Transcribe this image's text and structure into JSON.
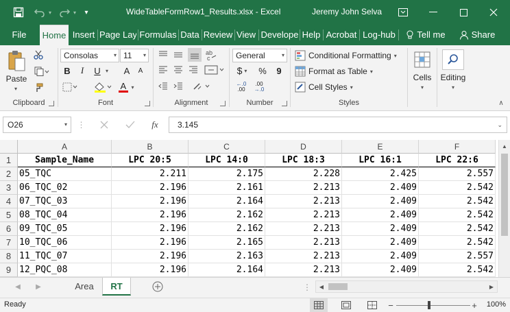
{
  "window": {
    "title": "WideTableFormRow1_Results.xlsx  -  Excel",
    "user": "Jeremy John Selva",
    "qat_more": "▾"
  },
  "tabs": [
    {
      "label": "File",
      "active": false
    },
    {
      "label": "Home",
      "active": true
    },
    {
      "label": "Insert",
      "active": false
    },
    {
      "label": "Page Layo",
      "active": false
    },
    {
      "label": "Formulas",
      "active": false
    },
    {
      "label": "Data",
      "active": false
    },
    {
      "label": "Review",
      "active": false
    },
    {
      "label": "View",
      "active": false
    },
    {
      "label": "Develope",
      "active": false
    },
    {
      "label": "Help",
      "active": false
    },
    {
      "label": "Acrobat",
      "active": false
    },
    {
      "label": "Log-hub",
      "active": false
    }
  ],
  "tell_me": "Tell me",
  "share": "Share",
  "ribbon": {
    "clipboard": {
      "label": "Clipboard",
      "paste": "Paste"
    },
    "font": {
      "label": "Font",
      "name": "Consolas",
      "size": "11",
      "bold": "B",
      "italic": "I",
      "underline": "U",
      "grow": "A",
      "shrink": "A",
      "font_color": "A"
    },
    "alignment": {
      "label": "Alignment"
    },
    "number": {
      "label": "Number",
      "format": "General",
      "currency": "$",
      "percent": "%",
      "comma": "9",
      "inc_decimal": ".00",
      "dec_decimal": ".00"
    },
    "styles": {
      "label": "Styles",
      "conditional": "Conditional Formatting",
      "format_table": "Format as Table",
      "cell_styles": "Cell Styles"
    },
    "cells": {
      "label": "Cells"
    },
    "editing": {
      "label": "Editing"
    }
  },
  "formula_bar": {
    "name_box": "O26",
    "fx": "fx",
    "value": "3.145"
  },
  "sheet": {
    "columns": [
      "A",
      "B",
      "C",
      "D",
      "E",
      "F"
    ],
    "rows": [
      [
        "Sample_Name",
        "LPC 20:5",
        "LPC 14:0",
        "LPC 18:3",
        "LPC 16:1",
        "LPC 22:6"
      ],
      [
        "05_TQC",
        "2.211",
        "2.175",
        "2.228",
        "2.425",
        "2.557"
      ],
      [
        "06_TQC_02",
        "2.196",
        "2.161",
        "2.213",
        "2.409",
        "2.542"
      ],
      [
        "07_TQC_03",
        "2.196",
        "2.164",
        "2.213",
        "2.409",
        "2.542"
      ],
      [
        "08_TQC_04",
        "2.196",
        "2.162",
        "2.213",
        "2.409",
        "2.542"
      ],
      [
        "09_TQC_05",
        "2.196",
        "2.162",
        "2.213",
        "2.409",
        "2.542"
      ],
      [
        "10_TQC_06",
        "2.196",
        "2.165",
        "2.213",
        "2.409",
        "2.542"
      ],
      [
        "11_TQC_07",
        "2.196",
        "2.163",
        "2.213",
        "2.409",
        "2.557"
      ],
      [
        "12_PQC_08",
        "2.196",
        "2.164",
        "2.213",
        "2.409",
        "2.542"
      ]
    ],
    "row_numbers": [
      "1",
      "2",
      "3",
      "4",
      "5",
      "6",
      "7",
      "8",
      "9"
    ]
  },
  "sheet_tabs": [
    {
      "label": "Area",
      "active": false
    },
    {
      "label": "RT",
      "active": true
    }
  ],
  "status": {
    "ready": "Ready",
    "zoom": "100%",
    "minus": "−",
    "plus": "+"
  },
  "colors": {
    "brand": "#217346",
    "ribbon_bg": "#f3f3f3",
    "grid_line": "#e1e1e1"
  }
}
